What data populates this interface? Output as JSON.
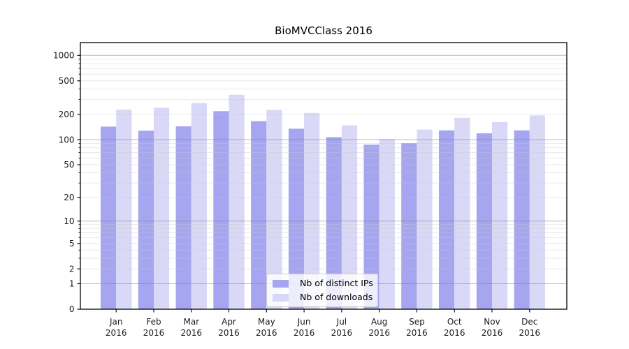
{
  "chart_data": {
    "type": "bar",
    "title": "BioMVCClass 2016",
    "categories": [
      "Jan",
      "Feb",
      "Mar",
      "Apr",
      "May",
      "Jun",
      "Jul",
      "Aug",
      "Sep",
      "Oct",
      "Nov",
      "Dec"
    ],
    "year_label": "2016",
    "series": [
      {
        "name": "Nb of distinct IPs",
        "color": "#a6a6f0",
        "values": [
          143,
          128,
          144,
          218,
          166,
          135,
          107,
          87,
          91,
          129,
          119,
          129
        ]
      },
      {
        "name": "Nb of downloads",
        "color": "#d9d9f7",
        "values": [
          228,
          240,
          272,
          342,
          226,
          208,
          148,
          102,
          132,
          182,
          162,
          194
        ]
      }
    ],
    "xlabel": "",
    "ylabel": "",
    "yscale": "log1p",
    "yticks": [
      0,
      1,
      2,
      5,
      10,
      20,
      50,
      100,
      200,
      500,
      1000
    ],
    "major_gridline_values": [
      1,
      10,
      100,
      1000
    ],
    "ylim": [
      0,
      1370
    ],
    "grid": true,
    "legend_position": "bottom-center",
    "colors": {
      "background": "#ffffff",
      "axis": "#000000",
      "major_grid": "#808080",
      "minor_grid": "#c8c8c8"
    }
  }
}
